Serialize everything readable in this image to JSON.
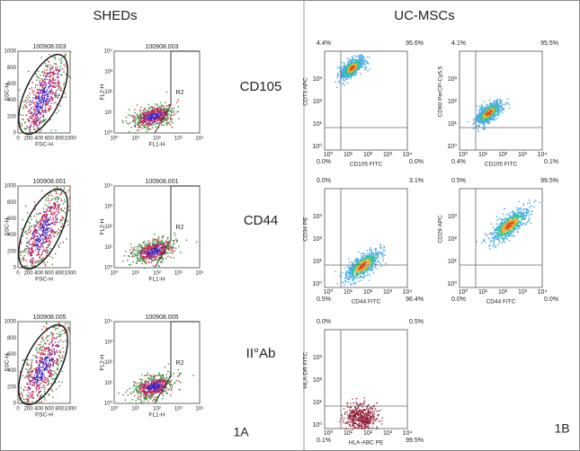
{
  "header": {
    "left_title": "SHEDs",
    "right_title": "UC-MSCs"
  },
  "row_labels": [
    "CD105",
    "CD44",
    "II°Ab"
  ],
  "panel_labels": [
    "1A",
    "1B"
  ],
  "linear_ticks": [
    0,
    200,
    400,
    600,
    800,
    1000
  ],
  "log_ticks": [
    "10⁰",
    "10¹",
    "10²",
    "10³",
    "10⁴"
  ],
  "sheds_plots": [
    {
      "id": "100908.003",
      "scatter_xlabel": "FSC-H",
      "scatter_ylabel": "SSC-H",
      "fl_xlabel": "FL1-H",
      "fl_ylabel": "FL2-H",
      "gate": "R2"
    },
    {
      "id": "100908.001",
      "scatter_xlabel": "FSC-H",
      "scatter_ylabel": "SSC-H",
      "fl_xlabel": "FL1-H",
      "fl_ylabel": "FL2-H",
      "gate": "R2"
    },
    {
      "id": "100908.005",
      "scatter_xlabel": "FSC-H",
      "scatter_ylabel": "SSC-H",
      "fl_xlabel": "FL1-H",
      "fl_ylabel": "FL2-H",
      "gate": "R2"
    }
  ],
  "ucmsc_plots": [
    {
      "xlabel": "CD105 FITC",
      "ylabel": "CD73 APC",
      "quadrants": [
        "4.4%",
        "95.6%",
        "0.0%",
        "0.0%"
      ]
    },
    {
      "xlabel": "CD105 FITC",
      "ylabel": "CD90 PerCP-Cy5.5",
      "quadrants": [
        "4.1%",
        "95.5%",
        "0.4%",
        "0.1%"
      ]
    },
    {
      "xlabel": "CD44 FITC",
      "ylabel": "CD34 PE",
      "quadrants": [
        "0.0%",
        "3.1%",
        "0.5%",
        "96.4%"
      ]
    },
    {
      "xlabel": "CD44 FITC",
      "ylabel": "CD29 APC",
      "quadrants": [
        "0.5%",
        "99.5%",
        "0.0%",
        "0.0%"
      ]
    },
    {
      "xlabel": "HLA-ABC PE",
      "ylabel": "HLA-DR FITC",
      "quadrants": [
        "0.0%",
        "0.5%",
        "0.1%",
        "99.5%"
      ]
    }
  ]
}
